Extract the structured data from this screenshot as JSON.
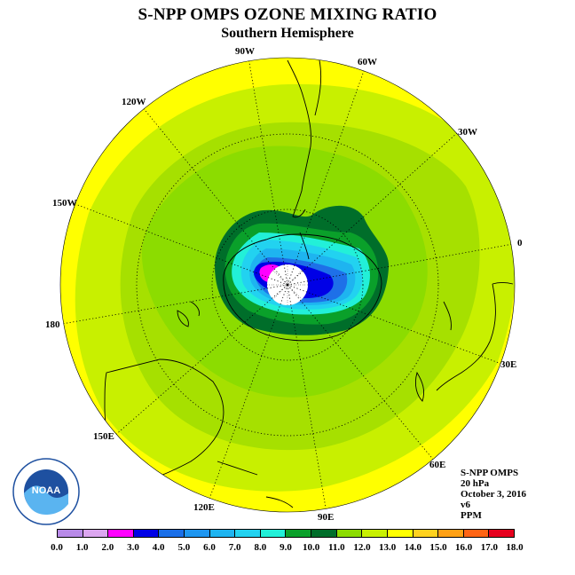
{
  "title": "S-NPP OMPS OZONE MIXING RATIO",
  "subtitle": "Southern Hemisphere",
  "longitude_labels": [
    "90W",
    "60W",
    "30W",
    "0",
    "30E",
    "60E",
    "90E",
    "120E",
    "150E",
    "180",
    "150W",
    "120W"
  ],
  "info": {
    "instrument": "S-NPP OMPS",
    "level": "20 hPa",
    "date": "October 3, 2016",
    "version": "v6",
    "unit": "PPM"
  },
  "colorbar": {
    "ticks": [
      "0.0",
      "1.0",
      "2.0",
      "3.0",
      "4.0",
      "5.0",
      "6.0",
      "7.0",
      "8.0",
      "9.0",
      "10.0",
      "11.0",
      "12.0",
      "13.0",
      "14.0",
      "15.0",
      "16.0",
      "17.0",
      "18.0"
    ],
    "colors": [
      "#b88ae8",
      "#dca6f0",
      "#ff00ff",
      "#0000e6",
      "#1a6fe8",
      "#1e96f0",
      "#1eb4f0",
      "#22d2f0",
      "#22f0d8",
      "#0aa02a",
      "#006e2a",
      "#8cdc00",
      "#c8f000",
      "#ffff00",
      "#ffd21e",
      "#ffa014",
      "#ff6414",
      "#e6001e",
      "#825a3c"
    ]
  },
  "logo": {
    "text": "NOAA"
  },
  "contour_levels_ppm": [
    3.0,
    4.0,
    5.0,
    6.0,
    7.0,
    8.0,
    9.0,
    10.0,
    11.0,
    12.0,
    13.0
  ]
}
